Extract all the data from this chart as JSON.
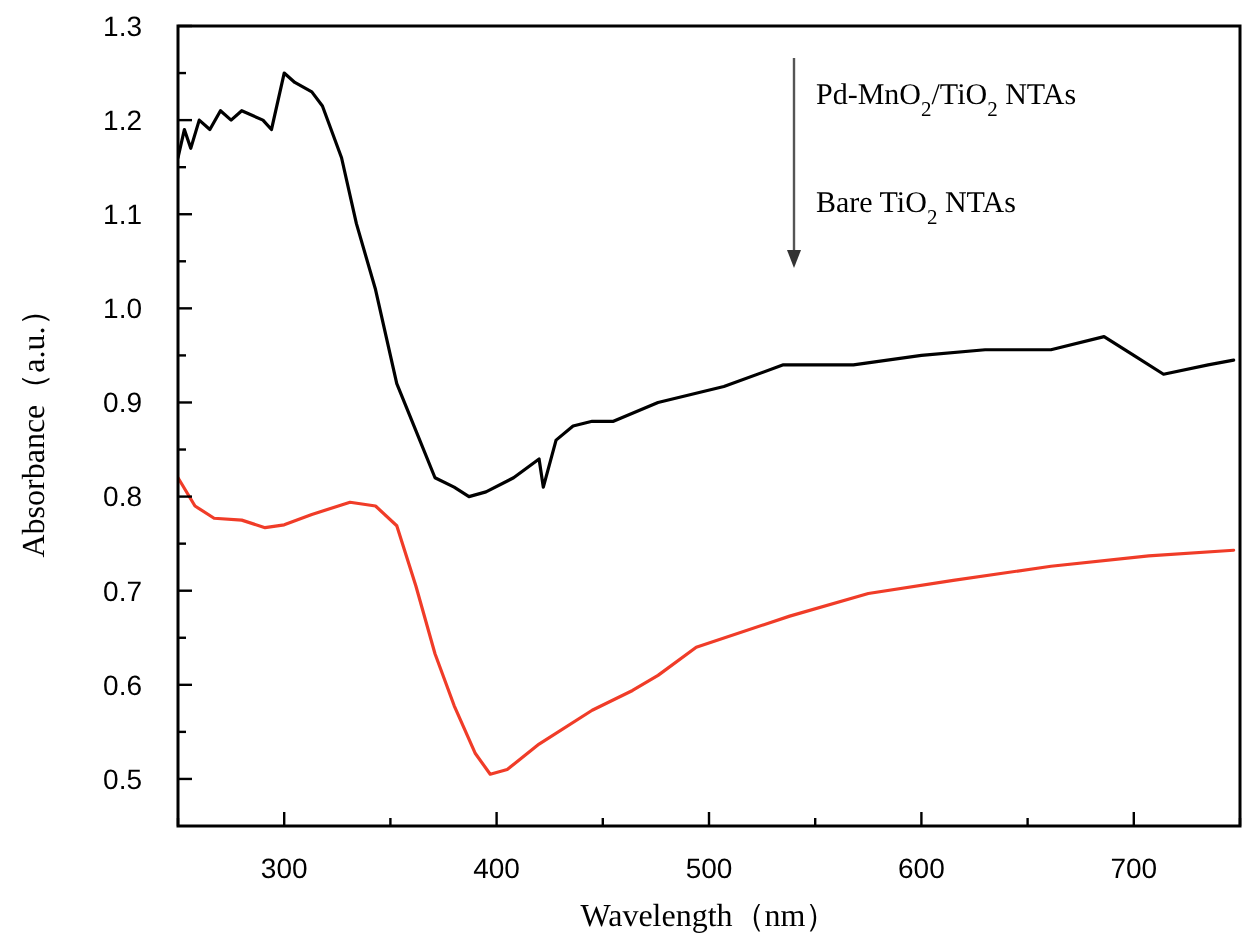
{
  "chart_data": {
    "type": "line",
    "xlabel": "Wavelength（nm）",
    "ylabel": "Absorbance（a.u.）",
    "xlim": [
      250,
      750
    ],
    "ylim": [
      0.45,
      1.3
    ],
    "xticks": [
      {
        "value": 250,
        "label": null
      },
      300,
      {
        "value": 350,
        "label": null
      },
      400,
      {
        "value": 450,
        "label": null
      },
      500,
      {
        "value": 550,
        "label": null
      },
      600,
      {
        "value": 650,
        "label": null
      },
      700,
      {
        "value": 750,
        "label": null
      }
    ],
    "yticks": [
      0.5,
      {
        "value": 0.55,
        "label": null
      },
      0.6,
      {
        "value": 0.65,
        "label": null
      },
      0.7,
      {
        "value": 0.75,
        "label": null
      },
      0.8,
      {
        "value": 0.85,
        "label": null
      },
      0.9,
      {
        "value": 0.95,
        "label": null
      },
      "1.0",
      {
        "value": 1.05,
        "label": null
      },
      1.1,
      {
        "value": 1.15,
        "label": null
      },
      1.2,
      {
        "value": 1.25,
        "label": null
      },
      1.3
    ],
    "grid": false,
    "marker": "none",
    "line_style": "solid",
    "annotations": [
      "Pd-MnO$_{2}$/TiO$_{2}$ NTAs",
      "Bare TiO$_{2}$ NTAs"
    ],
    "series": [
      {
        "color": "#000000",
        "x": [
          250,
          253,
          256,
          260,
          265,
          270,
          275,
          280,
          290,
          294,
          300,
          305,
          313,
          318,
          327,
          334,
          343,
          353,
          362,
          371,
          380,
          387,
          395,
          408,
          420,
          422,
          428,
          436,
          445,
          455,
          476,
          507,
          535,
          568,
          600,
          630,
          661,
          686,
          700,
          714,
          735,
          747
        ],
        "values": [
          1.16,
          1.19,
          1.17,
          1.2,
          1.19,
          1.21,
          1.2,
          1.21,
          1.2,
          1.19,
          1.25,
          1.24,
          1.23,
          1.215,
          1.16,
          1.09,
          1.02,
          0.92,
          0.87,
          0.82,
          0.81,
          0.8,
          0.805,
          0.82,
          0.84,
          0.81,
          0.86,
          0.875,
          0.88,
          0.88,
          0.9,
          0.917,
          0.94,
          0.94,
          0.95,
          0.956,
          0.956,
          0.97,
          0.95,
          0.93,
          0.94,
          0.945
        ]
      },
      {
        "color": "#f03c28",
        "x": [
          250,
          258,
          267,
          280,
          291,
          300,
          313,
          331,
          343,
          353,
          362,
          371,
          380,
          390,
          397,
          405,
          420,
          445,
          464,
          476,
          494,
          538,
          575,
          615,
          661,
          707,
          747
        ],
        "values": [
          0.82,
          0.79,
          0.777,
          0.775,
          0.767,
          0.77,
          0.781,
          0.794,
          0.79,
          0.769,
          0.705,
          0.633,
          0.578,
          0.527,
          0.505,
          0.51,
          0.537,
          0.573,
          0.594,
          0.61,
          0.64,
          0.673,
          0.697,
          0.711,
          0.726,
          0.737,
          0.743
        ]
      }
    ]
  }
}
